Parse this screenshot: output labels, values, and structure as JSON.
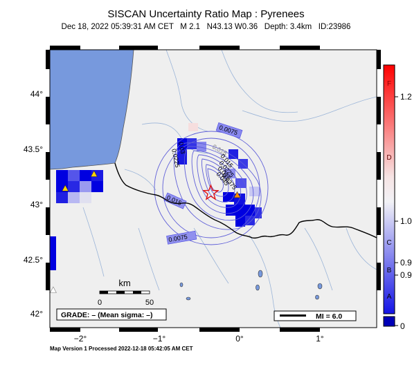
{
  "header": {
    "title": "SISCAN Uncertainty Ratio Map : Pyrenees",
    "event_date": "Dec 18, 2022 05:39:31 AM CET",
    "magnitude": "M 2.1",
    "location": "N43.13 W0.36",
    "depth": "Depth: 3.4km",
    "event_id": "ID:23986"
  },
  "axes": {
    "lat_ticks": [
      "44°",
      "43.5°",
      "43°",
      "42.5°",
      "42°"
    ],
    "lon_ticks": [
      "−2°",
      "−1°",
      "0°",
      "1°"
    ]
  },
  "scale_bar": {
    "unit": "km",
    "labels": [
      "0",
      "50"
    ]
  },
  "grade_box": {
    "text": "GRADE: – (Mean sigma: –)"
  },
  "mi_legend": {
    "text": "MI = 6.0"
  },
  "colorbar": {
    "letters": [
      "F",
      "D",
      "C",
      "B",
      "A"
    ],
    "values": [
      "1.2",
      "1.0",
      "0.9",
      "0.9"
    ],
    "bottom_value": "0",
    "colors": {
      "low": "#0000e0",
      "mid": "#f4f4f4",
      "high": "#ff0000"
    }
  },
  "contours": {
    "labels": [
      "0.0075",
      "0.015",
      "0.03",
      "0.0225",
      "0.015",
      "0.0225",
      "0.035",
      "0.045",
      "0.0375",
      "0.015",
      "0.0075"
    ],
    "color": "#5f5fd8"
  },
  "epicenter": {
    "lon": -0.36,
    "lat": 43.13,
    "icon": "star-icon",
    "color": "#e01010"
  },
  "stations": [
    {
      "lon": -2.18,
      "lat": 43.17,
      "icon": "triangle-icon",
      "color": "#ffd400"
    },
    {
      "lon": -1.82,
      "lat": 43.3,
      "icon": "triangle-icon",
      "color": "#ffd400"
    },
    {
      "lon": -0.03,
      "lat": 43.11,
      "icon": "triangle-icon",
      "color": "#ff8c00"
    },
    {
      "lon": -2.33,
      "lat": 42.25,
      "icon": "triangle-icon",
      "color": "#ffffff"
    }
  ],
  "footer": {
    "text": "Map Version 1 Processed 2022-12-18 05:42:05 AM CET"
  }
}
